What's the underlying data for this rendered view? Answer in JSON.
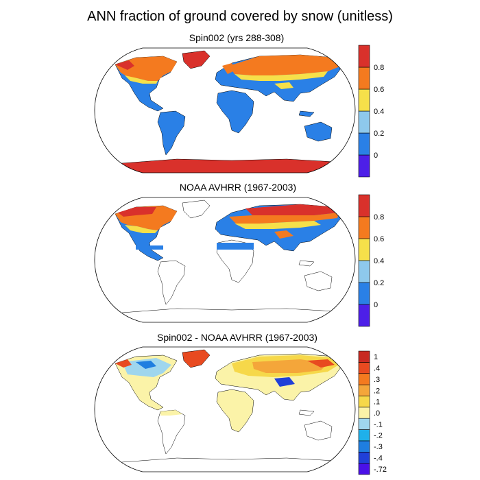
{
  "title": "ANN fraction of ground covered by snow (unitless)",
  "panels": [
    {
      "title": "Spin002 (yrs 288-308)",
      "colorbar": {
        "colors": [
          "#4d1fe8",
          "#2a80e6",
          "#8ec9ec",
          "#f6e04a",
          "#f47a1f",
          "#d9312b"
        ],
        "labels": [
          "0",
          "0.2",
          "0.4",
          "0.6",
          "0.8"
        ]
      },
      "regions": {
        "high_snow": "#d9312b",
        "mid_snow": "#f47a1f",
        "low_snow": "#f6e04a",
        "no_snow": "#2a80e6"
      }
    },
    {
      "title": "NOAA AVHRR (1967-2003)",
      "colorbar": {
        "colors": [
          "#4d1fe8",
          "#2a80e6",
          "#8ec9ec",
          "#f6e04a",
          "#f47a1f",
          "#d9312b"
        ],
        "labels": [
          "0",
          "0.2",
          "0.4",
          "0.6",
          "0.8"
        ]
      }
    },
    {
      "title": "Spin002 - NOAA AVHRR (1967-2003)",
      "colorbar": {
        "colors": [
          "#4a10e8",
          "#2040d8",
          "#1f7ee0",
          "#1fb0ea",
          "#9fd6ee",
          "#fbf3a8",
          "#f6d84a",
          "#f4a63a",
          "#f47a1f",
          "#e84a20",
          "#c82a22"
        ],
        "labels": [
          "-.72",
          "-.4",
          "-.3",
          "-.2",
          "-.1",
          ".0",
          ".1",
          ".2",
          ".3",
          ".4",
          "1"
        ]
      }
    }
  ]
}
